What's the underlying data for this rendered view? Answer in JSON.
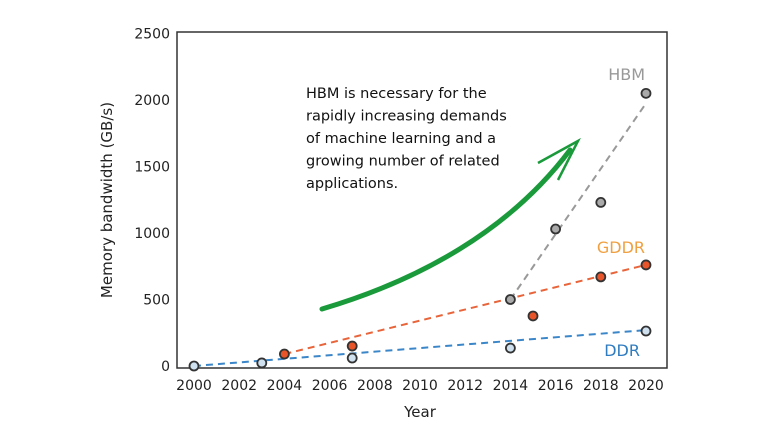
{
  "chart_data": {
    "type": "scatter",
    "title": "",
    "xlabel": "Year",
    "ylabel": "Memory bandwidth (GB/s)",
    "xlim": [
      2000,
      2020
    ],
    "ylim": [
      0,
      2500
    ],
    "xticks": [
      2000,
      2002,
      2004,
      2006,
      2008,
      2010,
      2012,
      2014,
      2016,
      2018,
      2020
    ],
    "yticks": [
      0,
      500,
      1000,
      1500,
      2000,
      2500
    ],
    "grid": false,
    "series": [
      {
        "name": "HBM",
        "color": "#999999",
        "marker_fill": "#aaaaaa",
        "points": [
          [
            2014,
            500
          ],
          [
            2016,
            1030
          ],
          [
            2018,
            1230
          ],
          [
            2020,
            2050
          ]
        ],
        "trend": [
          [
            2014,
            500
          ],
          [
            2020,
            1975
          ]
        ]
      },
      {
        "name": "GDDR",
        "color": "#f0a040",
        "line_color": "#e8643a",
        "marker_fill": "#e8552a",
        "points": [
          [
            2004,
            90
          ],
          [
            2007,
            150
          ],
          [
            2015,
            376
          ],
          [
            2018,
            670
          ],
          [
            2020,
            760
          ]
        ],
        "trend": [
          [
            2004,
            90
          ],
          [
            2020,
            760
          ]
        ]
      },
      {
        "name": "DDR",
        "color": "#2f7cc0",
        "line_color": "#3a86c8",
        "marker_fill": "#cfe0ee",
        "points": [
          [
            2000,
            0
          ],
          [
            2003,
            23
          ],
          [
            2007,
            60
          ],
          [
            2014,
            135
          ],
          [
            2020,
            263
          ]
        ],
        "trend": [
          [
            2000,
            0
          ],
          [
            2020,
            270
          ]
        ]
      }
    ],
    "annotations": [
      {
        "text": [
          "HBM is necessary for the",
          "rapidly increasing demands",
          "of machine learning and a",
          "growing number of related",
          "applications."
        ],
        "arrow_color": "#1a9a3a"
      }
    ]
  }
}
